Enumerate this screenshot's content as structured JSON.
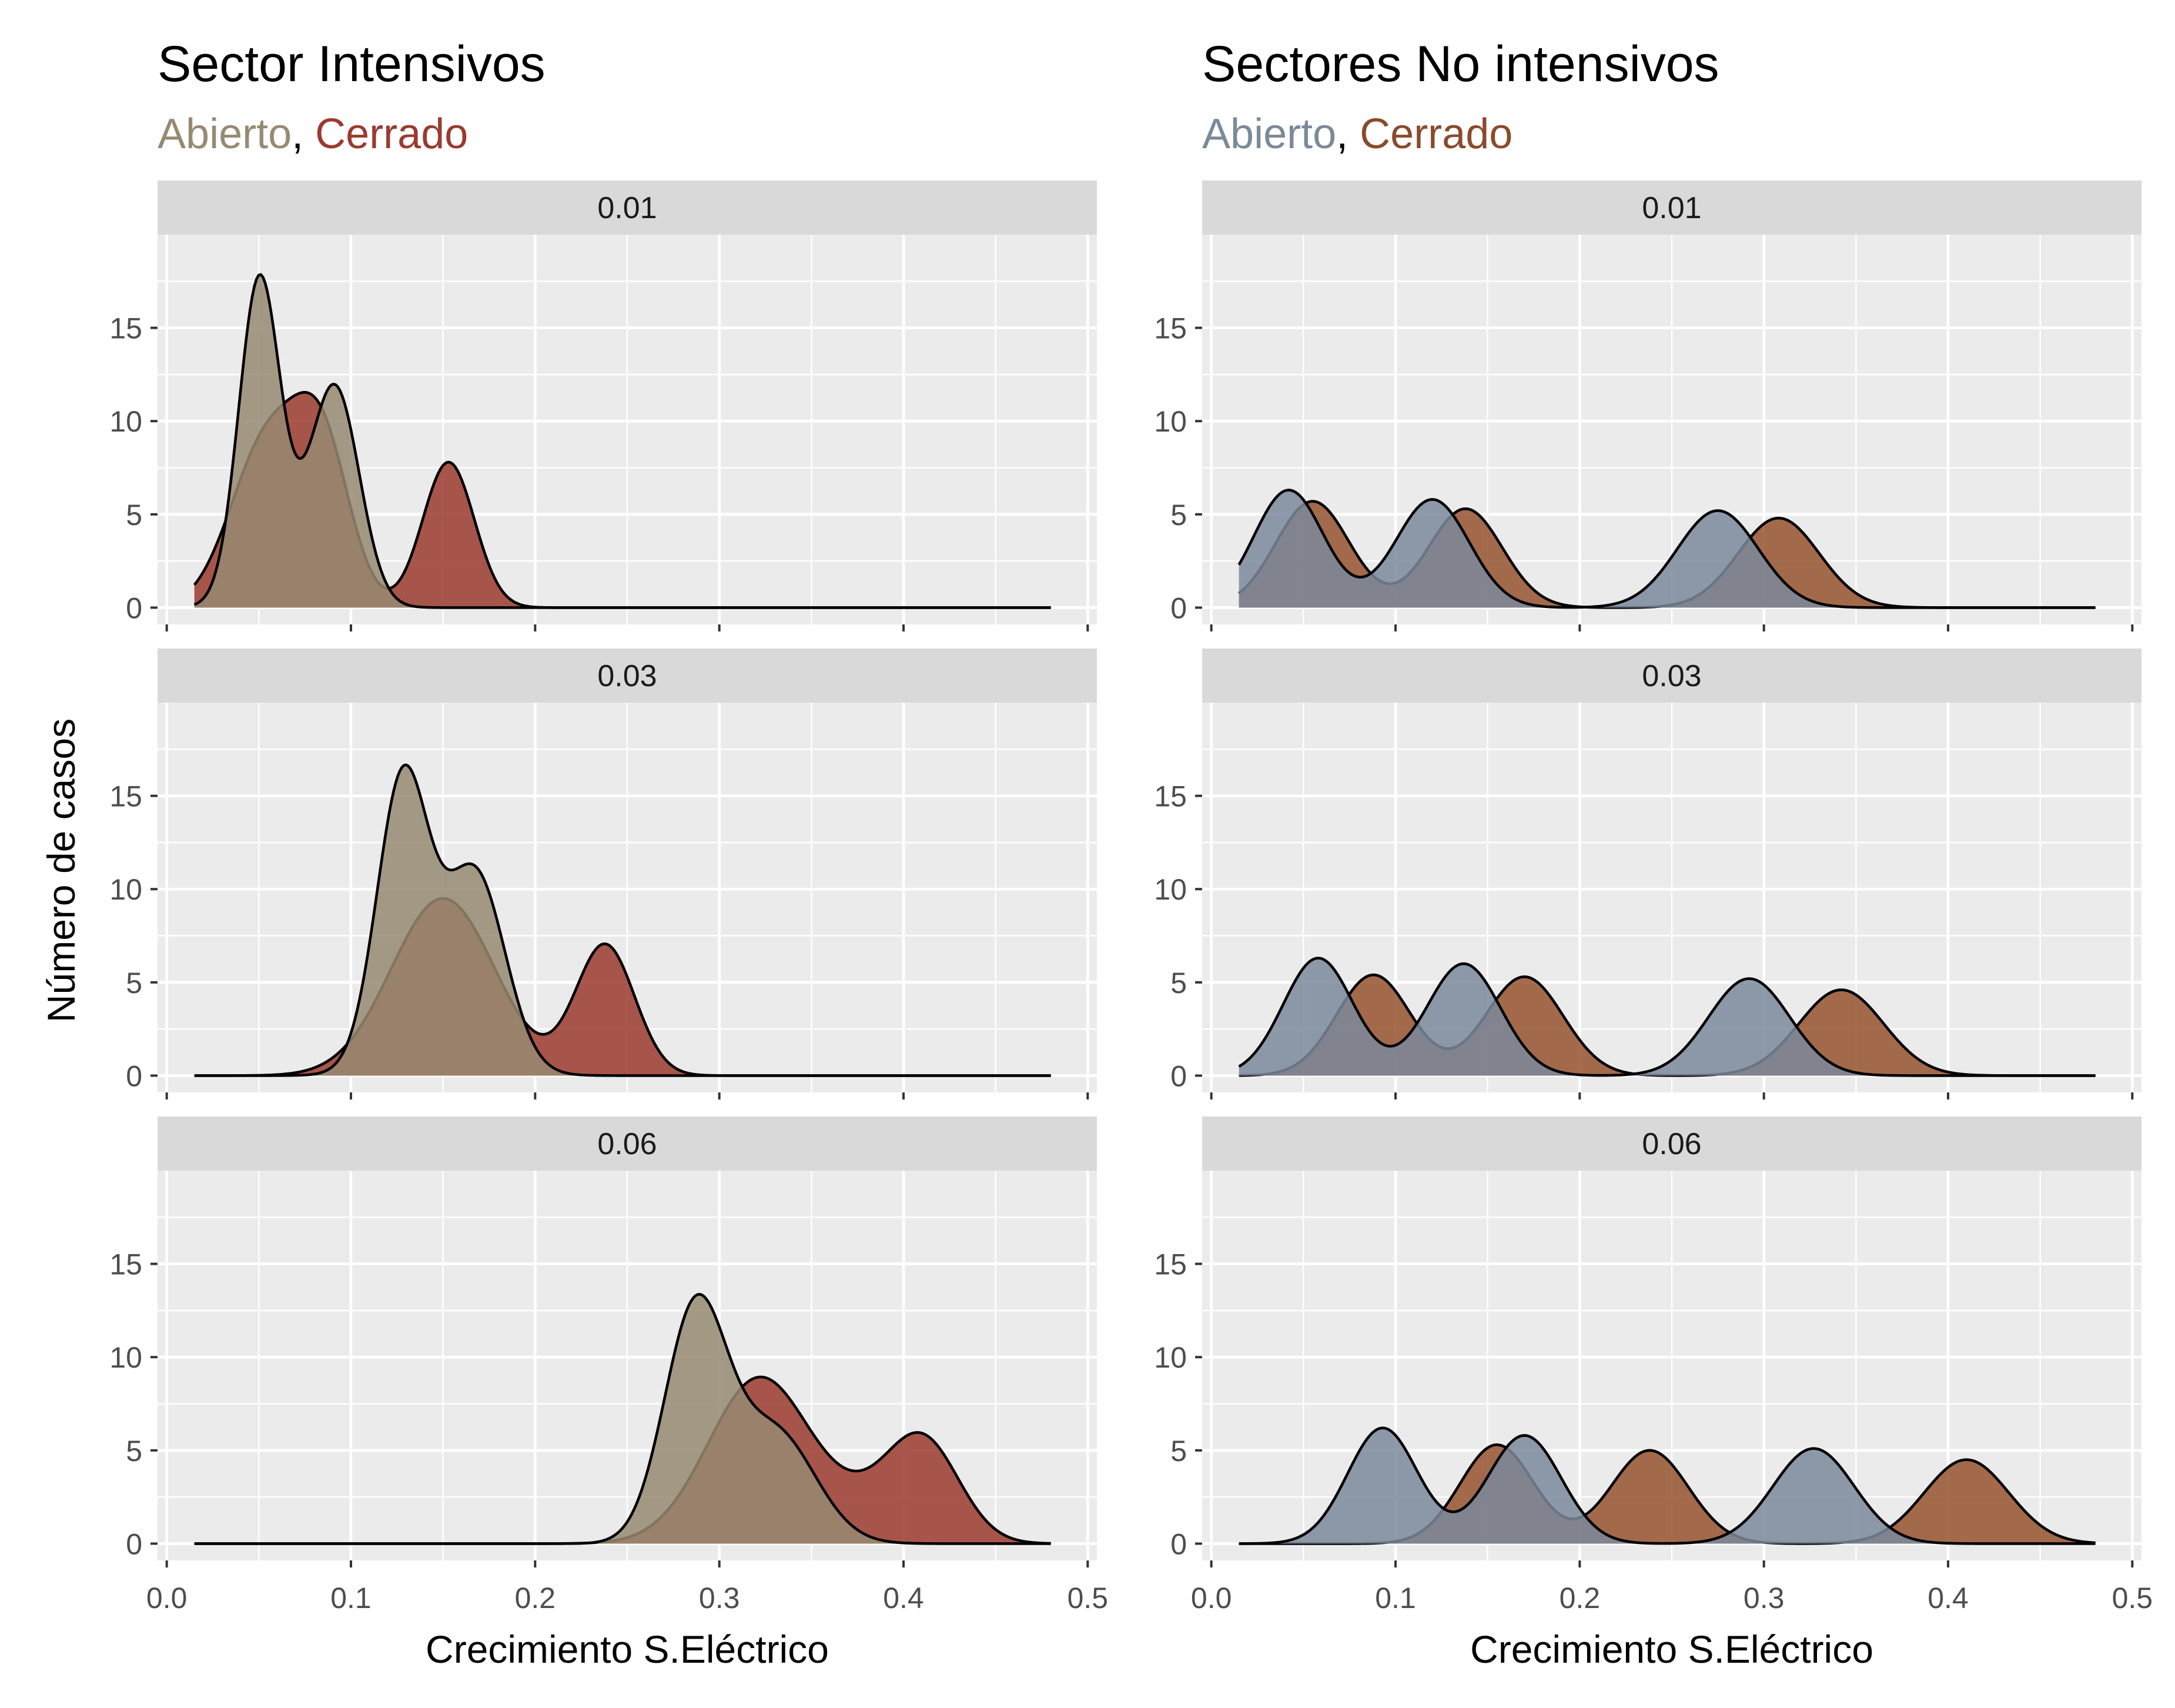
{
  "chart_data": [
    {
      "type": "area",
      "title": "Sector Intensivos",
      "subtitle": [
        {
          "text": "Abierto",
          "color": "#968a72"
        },
        {
          "text": ", ",
          "color": "#000000"
        },
        {
          "text": "Cerrado",
          "color": "#9b3a2e"
        }
      ],
      "xlabel": "Crecimiento S.Eléctrico",
      "ylabel": "Número de casos",
      "xlim": [
        -0.005,
        0.505
      ],
      "ylim": [
        -0.9,
        20.0
      ],
      "xticks": [
        0.0,
        0.1,
        0.2,
        0.3,
        0.4,
        0.5
      ],
      "xtick_labels": [
        "0.0",
        "0.1",
        "0.2",
        "0.3",
        "0.4",
        "0.5"
      ],
      "yticks": [
        0,
        5,
        10,
        15
      ],
      "ytick_labels": [
        "0",
        "5",
        "10",
        "15"
      ],
      "grid": true,
      "x_range": [
        0.015,
        0.48
      ],
      "fills": {
        "Cerrado": "#9b3a2e",
        "Abierto": "#968a72"
      },
      "panels": [
        {
          "label": "0.01",
          "series": [
            {
              "name": "Cerrado",
              "peaks": [
                [
                  0.055,
                  9.0,
                  0.02
                ],
                [
                  0.085,
                  7.6,
                  0.015
                ],
                [
                  0.153,
                  7.8,
                  0.014
                ]
              ]
            },
            {
              "name": "Abierto",
              "peaks": [
                [
                  0.05,
                  16.2,
                  0.011
                ],
                [
                  0.092,
                  10.5,
                  0.013
                ],
                [
                  0.07,
                  2.6,
                  0.02
                ]
              ]
            }
          ]
        },
        {
          "label": "0.03",
          "series": [
            {
              "name": "Cerrado",
              "peaks": [
                [
                  0.15,
                  9.5,
                  0.028
                ],
                [
                  0.238,
                  7.0,
                  0.016
                ]
              ]
            },
            {
              "name": "Abierto",
              "peaks": [
                [
                  0.128,
                  14.8,
                  0.014
                ],
                [
                  0.168,
                  9.4,
                  0.016
                ],
                [
                  0.15,
                  2.0,
                  0.025
                ]
              ]
            }
          ]
        },
        {
          "label": "0.06",
          "series": [
            {
              "name": "Cerrado",
              "peaks": [
                [
                  0.322,
                  8.9,
                  0.028
                ],
                [
                  0.41,
                  5.6,
                  0.02
                ],
                [
                  0.375,
                  1.2,
                  0.02
                ]
              ]
            },
            {
              "name": "Abierto",
              "peaks": [
                [
                  0.287,
                  12.4,
                  0.017
                ],
                [
                  0.33,
                  6.0,
                  0.022
                ]
              ]
            }
          ]
        }
      ]
    },
    {
      "type": "area",
      "title": "Sectores No intensivos",
      "subtitle": [
        {
          "text": "Abierto",
          "color": "#7a8a99"
        },
        {
          "text": ", ",
          "color": "#000000"
        },
        {
          "text": "Cerrado",
          "color": "#8b4a2b"
        }
      ],
      "xlabel": "Crecimiento S.Eléctrico",
      "ylabel": "",
      "xlim": [
        -0.005,
        0.505
      ],
      "ylim": [
        -0.9,
        20.0
      ],
      "xticks": [
        0.0,
        0.1,
        0.2,
        0.3,
        0.4,
        0.5
      ],
      "xtick_labels": [
        "0.0",
        "0.1",
        "0.2",
        "0.3",
        "0.4",
        "0.5"
      ],
      "yticks": [
        0,
        5,
        10,
        15
      ],
      "ytick_labels": [
        "0",
        "5",
        "10",
        "15"
      ],
      "grid": true,
      "x_range": [
        0.015,
        0.48
      ],
      "fills": {
        "Cerrado": "#96522f",
        "Abierto": "#7b8a9b"
      },
      "panels": [
        {
          "label": "0.01",
          "series": [
            {
              "name": "Cerrado",
              "peaks": [
                [
                  0.055,
                  5.7,
                  0.02
                ],
                [
                  0.138,
                  5.3,
                  0.02
                ],
                [
                  0.308,
                  4.8,
                  0.022
                ]
              ]
            },
            {
              "name": "Abierto",
              "peaks": [
                [
                  0.042,
                  6.3,
                  0.019
                ],
                [
                  0.12,
                  5.8,
                  0.02
                ],
                [
                  0.275,
                  5.2,
                  0.022
                ]
              ]
            }
          ]
        },
        {
          "label": "0.03",
          "series": [
            {
              "name": "Cerrado",
              "peaks": [
                [
                  0.088,
                  5.4,
                  0.02
                ],
                [
                  0.17,
                  5.3,
                  0.021
                ],
                [
                  0.342,
                  4.6,
                  0.023
                ]
              ]
            },
            {
              "name": "Abierto",
              "peaks": [
                [
                  0.058,
                  6.3,
                  0.019
                ],
                [
                  0.137,
                  6.0,
                  0.02
                ],
                [
                  0.292,
                  5.2,
                  0.022
                ]
              ]
            }
          ]
        },
        {
          "label": "0.06",
          "series": [
            {
              "name": "Cerrado",
              "peaks": [
                [
                  0.155,
                  5.3,
                  0.02
                ],
                [
                  0.238,
                  5.0,
                  0.021
                ],
                [
                  0.41,
                  4.5,
                  0.023
                ]
              ]
            },
            {
              "name": "Abierto",
              "peaks": [
                [
                  0.093,
                  6.2,
                  0.019
                ],
                [
                  0.17,
                  5.8,
                  0.02
                ],
                [
                  0.327,
                  5.1,
                  0.022
                ]
              ]
            }
          ]
        }
      ]
    }
  ]
}
